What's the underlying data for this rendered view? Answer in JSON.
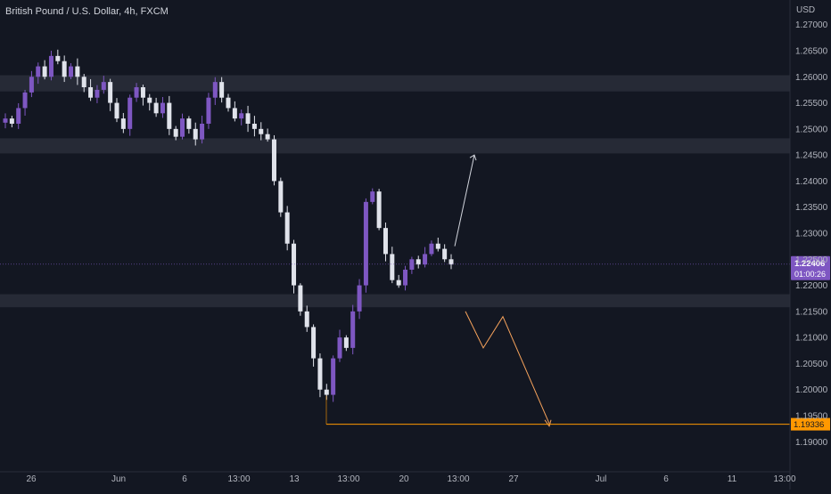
{
  "header": {
    "symbol": "British Pound / U.S. Dollar",
    "interval": "4h",
    "exchange": "FXCM",
    "currency": "USD"
  },
  "colors": {
    "background": "#131722",
    "up_candle": "#7e57c2",
    "down_candle": "#e0e3eb",
    "zone": "#2a2e39",
    "projection_up": "#d1d4dc",
    "projection_down": "#f7a35c",
    "target_line": "#ff9800",
    "price_label_bg": "#7e57c2"
  },
  "chart_data": {
    "type": "candlestick",
    "title": "",
    "ylim": [
      1.188,
      1.272
    ],
    "y_ticks": [
      "1.27000",
      "1.26500",
      "1.26000",
      "1.25500",
      "1.25000",
      "1.24500",
      "1.24000",
      "1.23500",
      "1.23000",
      "1.22500",
      "1.22000",
      "1.21500",
      "1.21000",
      "1.20500",
      "1.20000",
      "1.19500",
      "1.19000"
    ],
    "x_ticks": [
      "26",
      "Jun",
      "6",
      "13:00",
      "13",
      "13:00",
      "20",
      "13:00",
      "27",
      "Jul",
      "6",
      "11",
      "13:00"
    ],
    "current_price": "1.22406",
    "countdown": "01:00:26",
    "target_price": "1.19336",
    "zones": [
      {
        "from": 1.2572,
        "to": 1.2603
      },
      {
        "from": 1.2453,
        "to": 1.2482
      },
      {
        "from": 1.2158,
        "to": 1.2183
      }
    ],
    "price_path": [
      1.252,
      1.251,
      1.254,
      1.257,
      1.26,
      1.262,
      1.26,
      1.264,
      1.263,
      1.26,
      1.262,
      1.26,
      1.258,
      1.256,
      1.2575,
      1.259,
      1.255,
      1.252,
      1.25,
      1.256,
      1.258,
      1.256,
      1.255,
      1.253,
      1.255,
      1.25,
      1.2485,
      1.252,
      1.25,
      1.248,
      1.251,
      1.256,
      1.259,
      1.256,
      1.254,
      1.252,
      1.253,
      1.251,
      1.25,
      1.249,
      1.248,
      1.24,
      1.234,
      1.228,
      1.22,
      1.215,
      1.212,
      1.206,
      1.2,
      1.199,
      1.206,
      1.21,
      1.208,
      1.215,
      1.22,
      1.236,
      1.238,
      1.231,
      1.226,
      1.221,
      1.22,
      1.223,
      1.225,
      1.224,
      1.226,
      1.228,
      1.227,
      1.225,
      1.224
    ],
    "projections": [
      {
        "name": "up",
        "points": [
          [
            1.2275,
            0
          ],
          [
            1.245,
            1
          ]
        ]
      },
      {
        "name": "down",
        "points": [
          [
            1.215,
            0
          ],
          [
            1.208,
            1
          ],
          [
            1.214,
            2
          ],
          [
            1.1935,
            3
          ]
        ]
      }
    ]
  }
}
